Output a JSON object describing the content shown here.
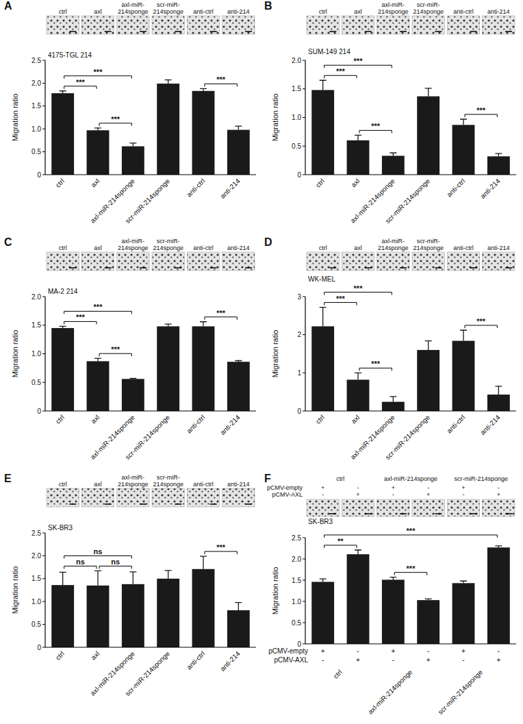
{
  "chart_data": [
    {
      "type": "bar",
      "panel": "A",
      "title": "4175-TGL 214",
      "y_label": "Migration ratio",
      "categories": [
        "ctrl",
        "axl",
        "axl-miR-214sponge",
        "scr-miR-214sponge",
        "anti-ctrl",
        "anti-214"
      ],
      "values": [
        1.78,
        0.97,
        0.62,
        1.99,
        1.83,
        0.98
      ],
      "errors": [
        0.05,
        0.05,
        0.07,
        0.08,
        0.05,
        0.08
      ],
      "color": "#1a1a1a",
      "grid": false,
      "ylim": [
        0,
        2.5
      ],
      "yticks": [
        0,
        0.5,
        {
          "value": 1,
          "label": "1.0"
        },
        1.5,
        {
          "value": 2,
          "label": "2.0"
        },
        2.5
      ],
      "significance": [
        {
          "between": [
            0,
            1
          ],
          "label": "***"
        },
        {
          "between": [
            0,
            2
          ],
          "label": "***"
        },
        {
          "between": [
            1,
            2
          ],
          "label": "***"
        },
        {
          "between": [
            4,
            5
          ],
          "label": "***"
        }
      ]
    },
    {
      "type": "bar",
      "panel": "B",
      "title": "SUM-149 214",
      "y_label": "Migration ratio",
      "categories": [
        "ctrl",
        "axl",
        "axl-miR-214sponge",
        "scr-miR-214sponge",
        "anti-ctrl",
        "anti-214"
      ],
      "values": [
        1.48,
        0.6,
        0.33,
        1.37,
        0.87,
        0.32
      ],
      "errors": [
        0.17,
        0.09,
        0.05,
        0.14,
        0.1,
        0.05
      ],
      "color": "#1a1a1a",
      "grid": false,
      "ylim": [
        0,
        2
      ],
      "yticks": [
        0,
        0.5,
        {
          "value": 1,
          "label": "1.0"
        },
        1.5,
        {
          "value": 2,
          "label": "2.0"
        }
      ],
      "significance": [
        {
          "between": [
            0,
            1
          ],
          "label": "***"
        },
        {
          "between": [
            0,
            2
          ],
          "label": "***"
        },
        {
          "between": [
            1,
            2
          ],
          "label": "***"
        },
        {
          "between": [
            4,
            5
          ],
          "label": "***"
        }
      ]
    },
    {
      "type": "bar",
      "panel": "C",
      "title": "MA-2 214",
      "y_label": "Migration ratio",
      "categories": [
        "ctrl",
        "axl",
        "axl-miR-214sponge",
        "scr-miR-214sponge",
        "anti-ctrl",
        "anti-214"
      ],
      "values": [
        1.45,
        0.87,
        0.56,
        1.48,
        1.48,
        0.86
      ],
      "errors": [
        0.03,
        0.05,
        0.01,
        0.04,
        0.08,
        0.02
      ],
      "color": "#1a1a1a",
      "grid": false,
      "ylim": [
        0,
        2
      ],
      "yticks": [
        0,
        0.5,
        {
          "value": 1,
          "label": "1.0"
        },
        1.5,
        {
          "value": 2,
          "label": "2.0"
        }
      ],
      "significance": [
        {
          "between": [
            0,
            1
          ],
          "label": "***"
        },
        {
          "between": [
            0,
            2
          ],
          "label": "***"
        },
        {
          "between": [
            1,
            2
          ],
          "label": "***"
        },
        {
          "between": [
            4,
            5
          ],
          "label": "***"
        }
      ]
    },
    {
      "type": "bar",
      "panel": "D",
      "title": "WK-MEL",
      "y_label": "Migration ratio",
      "categories": [
        "ctrl",
        "axl",
        "axl-miR-214sponge",
        "scr-miR-214sponge",
        "anti-ctrl",
        "anti-214"
      ],
      "values": [
        2.22,
        0.82,
        0.24,
        1.6,
        1.84,
        0.43
      ],
      "errors": [
        0.5,
        0.18,
        0.14,
        0.24,
        0.28,
        0.22
      ],
      "color": "#1a1a1a",
      "grid": false,
      "ylim": [
        0,
        3
      ],
      "yticks": [
        0,
        1,
        2,
        3
      ],
      "significance": [
        {
          "between": [
            0,
            1
          ],
          "label": "***"
        },
        {
          "between": [
            0,
            2
          ],
          "label": "***"
        },
        {
          "between": [
            1,
            2
          ],
          "label": "***"
        },
        {
          "between": [
            4,
            5
          ],
          "label": "***"
        }
      ]
    },
    {
      "type": "bar",
      "panel": "E",
      "title": "SK-BR3",
      "y_label": "Migration ratio",
      "categories": [
        "ctrl",
        "axl",
        "axl-miR-214sponge",
        "scr-miR-214sponge",
        "anti-ctrl",
        "anti-214"
      ],
      "values": [
        1.36,
        1.35,
        1.38,
        1.5,
        1.71,
        0.81
      ],
      "errors": [
        0.28,
        0.32,
        0.27,
        0.18,
        0.28,
        0.17
      ],
      "color": "#1a1a1a",
      "grid": false,
      "ylim": [
        0,
        2.5
      ],
      "yticks": [
        0,
        0.5,
        {
          "value": 1,
          "label": "1.0"
        },
        1.5,
        {
          "value": 2,
          "label": "2.0"
        },
        2.5
      ],
      "significance": [
        {
          "between": [
            0,
            1
          ],
          "label": "ns"
        },
        {
          "between": [
            0,
            2
          ],
          "label": "ns"
        },
        {
          "between": [
            1,
            2
          ],
          "label": "ns"
        },
        {
          "between": [
            4,
            5
          ],
          "label": "***"
        }
      ]
    },
    {
      "type": "bar",
      "panel": "F",
      "title": "SK-BR3",
      "y_label": "Migration ratio",
      "groups": [
        "ctrl",
        "axl-miR-214sponge",
        "scr-miR-214sponge"
      ],
      "rows": [
        {
          "name": "pCMV-empty",
          "marks": [
            "+",
            "-",
            "+",
            "-",
            "+",
            "-"
          ]
        },
        {
          "name": "pCMV-AXL",
          "marks": [
            "-",
            "+",
            "-",
            "+",
            "-",
            "+"
          ]
        }
      ],
      "values": [
        1.46,
        2.11,
        1.51,
        1.03,
        1.43,
        2.27
      ],
      "errors": [
        0.07,
        0.1,
        0.06,
        0.03,
        0.05,
        0.04
      ],
      "color": "#1a1a1a",
      "grid": false,
      "ylim": [
        0,
        2.5
      ],
      "yticks": [
        0,
        0.5,
        {
          "value": 1,
          "label": "1.0"
        },
        1.5,
        {
          "value": 2,
          "label": "2.0"
        },
        2.5
      ],
      "significance": [
        {
          "between": [
            0,
            1
          ],
          "label": "**"
        },
        {
          "between": [
            2,
            3
          ],
          "label": "***"
        },
        {
          "between": [
            0,
            5
          ],
          "label": "***"
        }
      ]
    }
  ]
}
